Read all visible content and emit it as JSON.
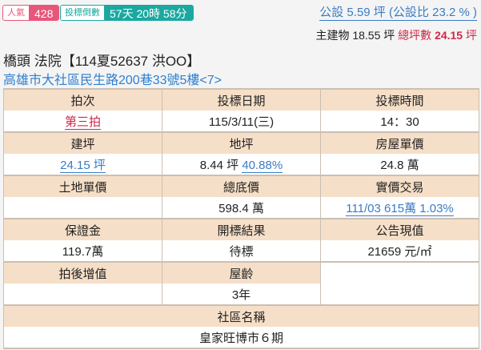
{
  "badges": {
    "popularity_label": "人氣",
    "popularity_value": "428",
    "countdown_label": "投標倒數",
    "countdown_value": "57天 20時 58分"
  },
  "area": {
    "common": "公設 5.59 坪 (公設比 23.2 % )",
    "main_label": "主建物 18.55 坪",
    "total_label": "總坪數",
    "total_value": "24.15",
    "total_unit": "坪"
  },
  "title": "橋頭 法院【114夏52637 洪OO】",
  "address": "高雄市大社區民生路200巷33號5樓<7>",
  "table": {
    "auction_round_h": "拍次",
    "auction_round": "第三拍",
    "bid_date_h": "投標日期",
    "bid_date": "115/3/11(三)",
    "bid_time_h": "投標時間",
    "bid_time": "14：30",
    "building_area_h": "建坪",
    "building_area": "24.15 坪",
    "land_area_h": "地坪",
    "land_area": "8.44 坪",
    "land_ratio": "40.88%",
    "house_unit_price_h": "房屋單價",
    "house_unit_price": "24.8 萬",
    "land_unit_price_h": "土地單價",
    "land_unit_price": "",
    "reserve_price_h": "總底價",
    "reserve_price": "598.4 萬",
    "actual_trade_h": "實價交易",
    "actual_trade": "111/03 615萬 1.03%",
    "deposit_h": "保證金",
    "deposit": "119.7萬",
    "result_h": "開標結果",
    "result": "待標",
    "announced_value_h": "公告現值",
    "announced_value": "21659 元/㎡",
    "appreciation_h": "拍後增值",
    "appreciation": "",
    "age_h": "屋齡",
    "age": "3年",
    "community_h": "社區名稱",
    "community": "皇家旺博市６期"
  }
}
